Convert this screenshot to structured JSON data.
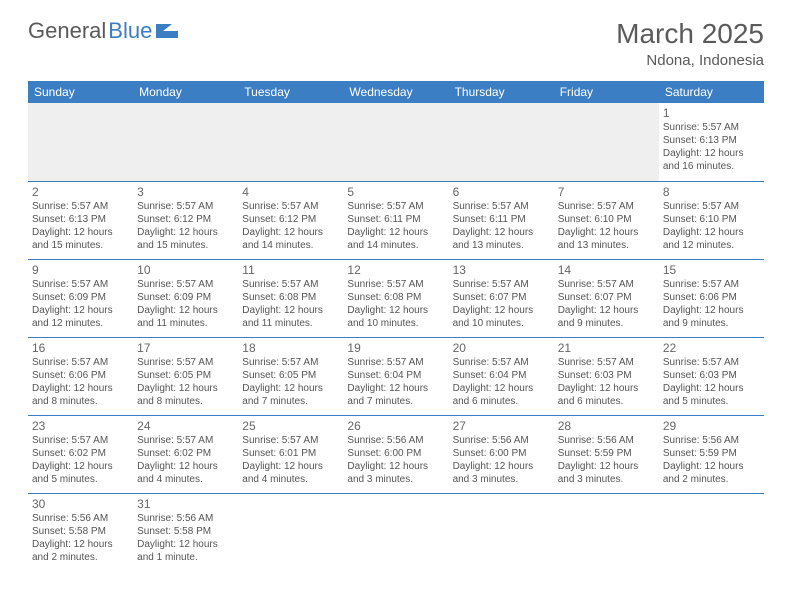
{
  "logo": {
    "text1": "General",
    "text2": "Blue",
    "icon_color": "#3b7ec4"
  },
  "header": {
    "month": "March 2025",
    "location": "Ndona, Indonesia"
  },
  "colors": {
    "header_bg": "#3b7ec4",
    "header_fg": "#ffffff",
    "border": "#3b7ec4",
    "empty_bg": "#efefef"
  },
  "day_headers": [
    "Sunday",
    "Monday",
    "Tuesday",
    "Wednesday",
    "Thursday",
    "Friday",
    "Saturday"
  ],
  "weeks": [
    [
      null,
      null,
      null,
      null,
      null,
      null,
      {
        "n": "1",
        "sunrise": "Sunrise: 5:57 AM",
        "sunset": "Sunset: 6:13 PM",
        "daylight": "Daylight: 12 hours and 16 minutes."
      }
    ],
    [
      {
        "n": "2",
        "sunrise": "Sunrise: 5:57 AM",
        "sunset": "Sunset: 6:13 PM",
        "daylight": "Daylight: 12 hours and 15 minutes."
      },
      {
        "n": "3",
        "sunrise": "Sunrise: 5:57 AM",
        "sunset": "Sunset: 6:12 PM",
        "daylight": "Daylight: 12 hours and 15 minutes."
      },
      {
        "n": "4",
        "sunrise": "Sunrise: 5:57 AM",
        "sunset": "Sunset: 6:12 PM",
        "daylight": "Daylight: 12 hours and 14 minutes."
      },
      {
        "n": "5",
        "sunrise": "Sunrise: 5:57 AM",
        "sunset": "Sunset: 6:11 PM",
        "daylight": "Daylight: 12 hours and 14 minutes."
      },
      {
        "n": "6",
        "sunrise": "Sunrise: 5:57 AM",
        "sunset": "Sunset: 6:11 PM",
        "daylight": "Daylight: 12 hours and 13 minutes."
      },
      {
        "n": "7",
        "sunrise": "Sunrise: 5:57 AM",
        "sunset": "Sunset: 6:10 PM",
        "daylight": "Daylight: 12 hours and 13 minutes."
      },
      {
        "n": "8",
        "sunrise": "Sunrise: 5:57 AM",
        "sunset": "Sunset: 6:10 PM",
        "daylight": "Daylight: 12 hours and 12 minutes."
      }
    ],
    [
      {
        "n": "9",
        "sunrise": "Sunrise: 5:57 AM",
        "sunset": "Sunset: 6:09 PM",
        "daylight": "Daylight: 12 hours and 12 minutes."
      },
      {
        "n": "10",
        "sunrise": "Sunrise: 5:57 AM",
        "sunset": "Sunset: 6:09 PM",
        "daylight": "Daylight: 12 hours and 11 minutes."
      },
      {
        "n": "11",
        "sunrise": "Sunrise: 5:57 AM",
        "sunset": "Sunset: 6:08 PM",
        "daylight": "Daylight: 12 hours and 11 minutes."
      },
      {
        "n": "12",
        "sunrise": "Sunrise: 5:57 AM",
        "sunset": "Sunset: 6:08 PM",
        "daylight": "Daylight: 12 hours and 10 minutes."
      },
      {
        "n": "13",
        "sunrise": "Sunrise: 5:57 AM",
        "sunset": "Sunset: 6:07 PM",
        "daylight": "Daylight: 12 hours and 10 minutes."
      },
      {
        "n": "14",
        "sunrise": "Sunrise: 5:57 AM",
        "sunset": "Sunset: 6:07 PM",
        "daylight": "Daylight: 12 hours and 9 minutes."
      },
      {
        "n": "15",
        "sunrise": "Sunrise: 5:57 AM",
        "sunset": "Sunset: 6:06 PM",
        "daylight": "Daylight: 12 hours and 9 minutes."
      }
    ],
    [
      {
        "n": "16",
        "sunrise": "Sunrise: 5:57 AM",
        "sunset": "Sunset: 6:06 PM",
        "daylight": "Daylight: 12 hours and 8 minutes."
      },
      {
        "n": "17",
        "sunrise": "Sunrise: 5:57 AM",
        "sunset": "Sunset: 6:05 PM",
        "daylight": "Daylight: 12 hours and 8 minutes."
      },
      {
        "n": "18",
        "sunrise": "Sunrise: 5:57 AM",
        "sunset": "Sunset: 6:05 PM",
        "daylight": "Daylight: 12 hours and 7 minutes."
      },
      {
        "n": "19",
        "sunrise": "Sunrise: 5:57 AM",
        "sunset": "Sunset: 6:04 PM",
        "daylight": "Daylight: 12 hours and 7 minutes."
      },
      {
        "n": "20",
        "sunrise": "Sunrise: 5:57 AM",
        "sunset": "Sunset: 6:04 PM",
        "daylight": "Daylight: 12 hours and 6 minutes."
      },
      {
        "n": "21",
        "sunrise": "Sunrise: 5:57 AM",
        "sunset": "Sunset: 6:03 PM",
        "daylight": "Daylight: 12 hours and 6 minutes."
      },
      {
        "n": "22",
        "sunrise": "Sunrise: 5:57 AM",
        "sunset": "Sunset: 6:03 PM",
        "daylight": "Daylight: 12 hours and 5 minutes."
      }
    ],
    [
      {
        "n": "23",
        "sunrise": "Sunrise: 5:57 AM",
        "sunset": "Sunset: 6:02 PM",
        "daylight": "Daylight: 12 hours and 5 minutes."
      },
      {
        "n": "24",
        "sunrise": "Sunrise: 5:57 AM",
        "sunset": "Sunset: 6:02 PM",
        "daylight": "Daylight: 12 hours and 4 minutes."
      },
      {
        "n": "25",
        "sunrise": "Sunrise: 5:57 AM",
        "sunset": "Sunset: 6:01 PM",
        "daylight": "Daylight: 12 hours and 4 minutes."
      },
      {
        "n": "26",
        "sunrise": "Sunrise: 5:56 AM",
        "sunset": "Sunset: 6:00 PM",
        "daylight": "Daylight: 12 hours and 3 minutes."
      },
      {
        "n": "27",
        "sunrise": "Sunrise: 5:56 AM",
        "sunset": "Sunset: 6:00 PM",
        "daylight": "Daylight: 12 hours and 3 minutes."
      },
      {
        "n": "28",
        "sunrise": "Sunrise: 5:56 AM",
        "sunset": "Sunset: 5:59 PM",
        "daylight": "Daylight: 12 hours and 3 minutes."
      },
      {
        "n": "29",
        "sunrise": "Sunrise: 5:56 AM",
        "sunset": "Sunset: 5:59 PM",
        "daylight": "Daylight: 12 hours and 2 minutes."
      }
    ],
    [
      {
        "n": "30",
        "sunrise": "Sunrise: 5:56 AM",
        "sunset": "Sunset: 5:58 PM",
        "daylight": "Daylight: 12 hours and 2 minutes."
      },
      {
        "n": "31",
        "sunrise": "Sunrise: 5:56 AM",
        "sunset": "Sunset: 5:58 PM",
        "daylight": "Daylight: 12 hours and 1 minute."
      },
      null,
      null,
      null,
      null,
      null
    ]
  ]
}
